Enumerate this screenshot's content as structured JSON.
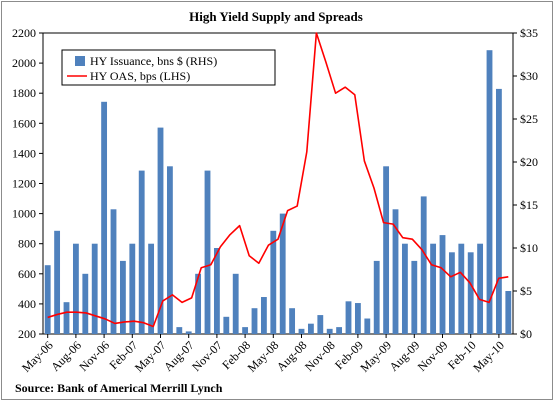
{
  "chart_data": {
    "type": "bar",
    "title": "High Yield Supply and Spreads",
    "source": "Source: Bank of Americal Merrill Lynch",
    "left_axis": {
      "ylim": [
        200,
        2200
      ],
      "ticks": [
        "200",
        "400",
        "600",
        "800",
        "1000",
        "1200",
        "1400",
        "1600",
        "1800",
        "2000",
        "2200"
      ]
    },
    "right_axis": {
      "ylim": [
        0,
        35
      ],
      "ticks": [
        "$0",
        "$5",
        "$10",
        "$15",
        "$20",
        "$25",
        "$30",
        "$35"
      ]
    },
    "x_tick_labels": [
      "May-06",
      "Aug-06",
      "Nov-06",
      "Feb-07",
      "May-07",
      "Aug-07",
      "Nov-07",
      "Feb-08",
      "May-08",
      "Aug-08",
      "Nov-08",
      "Feb-09",
      "May-09",
      "Aug-09",
      "Nov-09",
      "Feb-10",
      "May-10"
    ],
    "legend_position": "top-left",
    "series": [
      {
        "name": "HY Issuance, bns $ (RHS)",
        "type": "bar",
        "axis": "right",
        "color": "#4f81bd",
        "values": [
          8.0,
          12.0,
          3.7,
          10.5,
          7.0,
          10.5,
          27.0,
          14.5,
          8.5,
          10.5,
          19.0,
          10.5,
          24.0,
          19.5,
          0.8,
          0.3,
          7.0,
          19.0,
          10.0,
          2.0,
          7.0,
          0.8,
          3.0,
          4.3,
          12.0,
          14.0,
          3.0,
          0.6,
          1.2,
          2.2,
          0.6,
          0.8,
          3.8,
          3.6,
          1.8,
          8.5,
          19.5,
          14.5,
          10.5,
          8.5,
          16.0,
          10.5,
          11.5,
          9.5,
          10.5,
          9.5,
          10.5,
          33.0,
          28.5,
          5.0
        ]
      },
      {
        "name": "HY OAS, bps (LHS)",
        "type": "line",
        "axis": "left",
        "color": "#ff0000",
        "values": [
          310,
          330,
          345,
          345,
          340,
          320,
          300,
          270,
          280,
          285,
          275,
          250,
          420,
          460,
          410,
          440,
          640,
          660,
          780,
          860,
          920,
          720,
          670,
          790,
          830,
          1020,
          1050,
          1410,
          2200,
          2005,
          1800,
          1840,
          1790,
          1350,
          1170,
          940,
          930,
          840,
          830,
          760,
          660,
          640,
          580,
          610,
          540,
          430,
          410,
          570,
          580
        ]
      }
    ]
  }
}
